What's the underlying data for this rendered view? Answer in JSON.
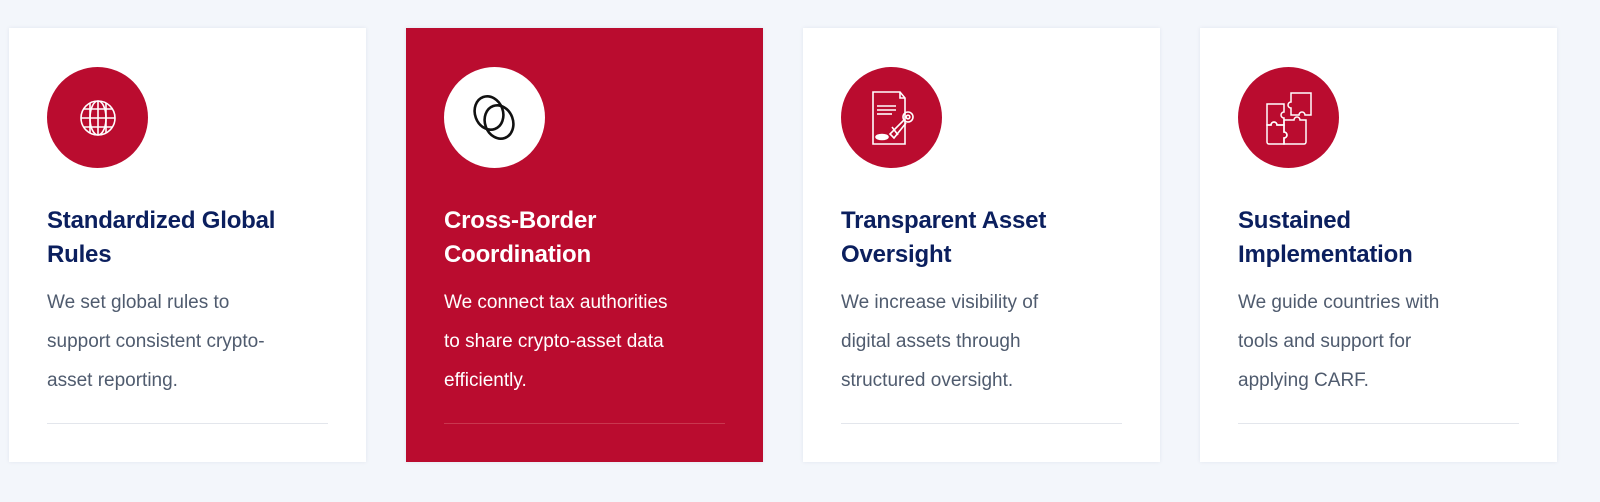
{
  "colors": {
    "accent": "#ba0c2f",
    "title": "#0b1f5e",
    "body": "#4f5b6e",
    "background": "#f3f6fb"
  },
  "cards": [
    {
      "icon": "globe-icon",
      "title_lines": [
        "Standardized Global",
        "Rules"
      ],
      "body_lines": [
        "We set global rules to",
        "support consistent crypto-",
        "asset reporting."
      ],
      "active": false
    },
    {
      "icon": "overlapping-circles-icon",
      "title_lines": [
        "Cross-Border",
        "Coordination"
      ],
      "body_lines": [
        "We connect tax authorities",
        "to share crypto-asset data",
        "efficiently."
      ],
      "active": true
    },
    {
      "icon": "document-seal-icon",
      "title_lines": [
        "Transparent Asset",
        "Oversight"
      ],
      "body_lines": [
        "We increase visibility of",
        "digital assets through",
        "structured oversight."
      ],
      "active": false
    },
    {
      "icon": "puzzle-icon",
      "title_lines": [
        "Sustained",
        "Implementation"
      ],
      "body_lines": [
        "We guide countries with",
        "tools and support for",
        "applying CARF."
      ],
      "active": false
    }
  ]
}
